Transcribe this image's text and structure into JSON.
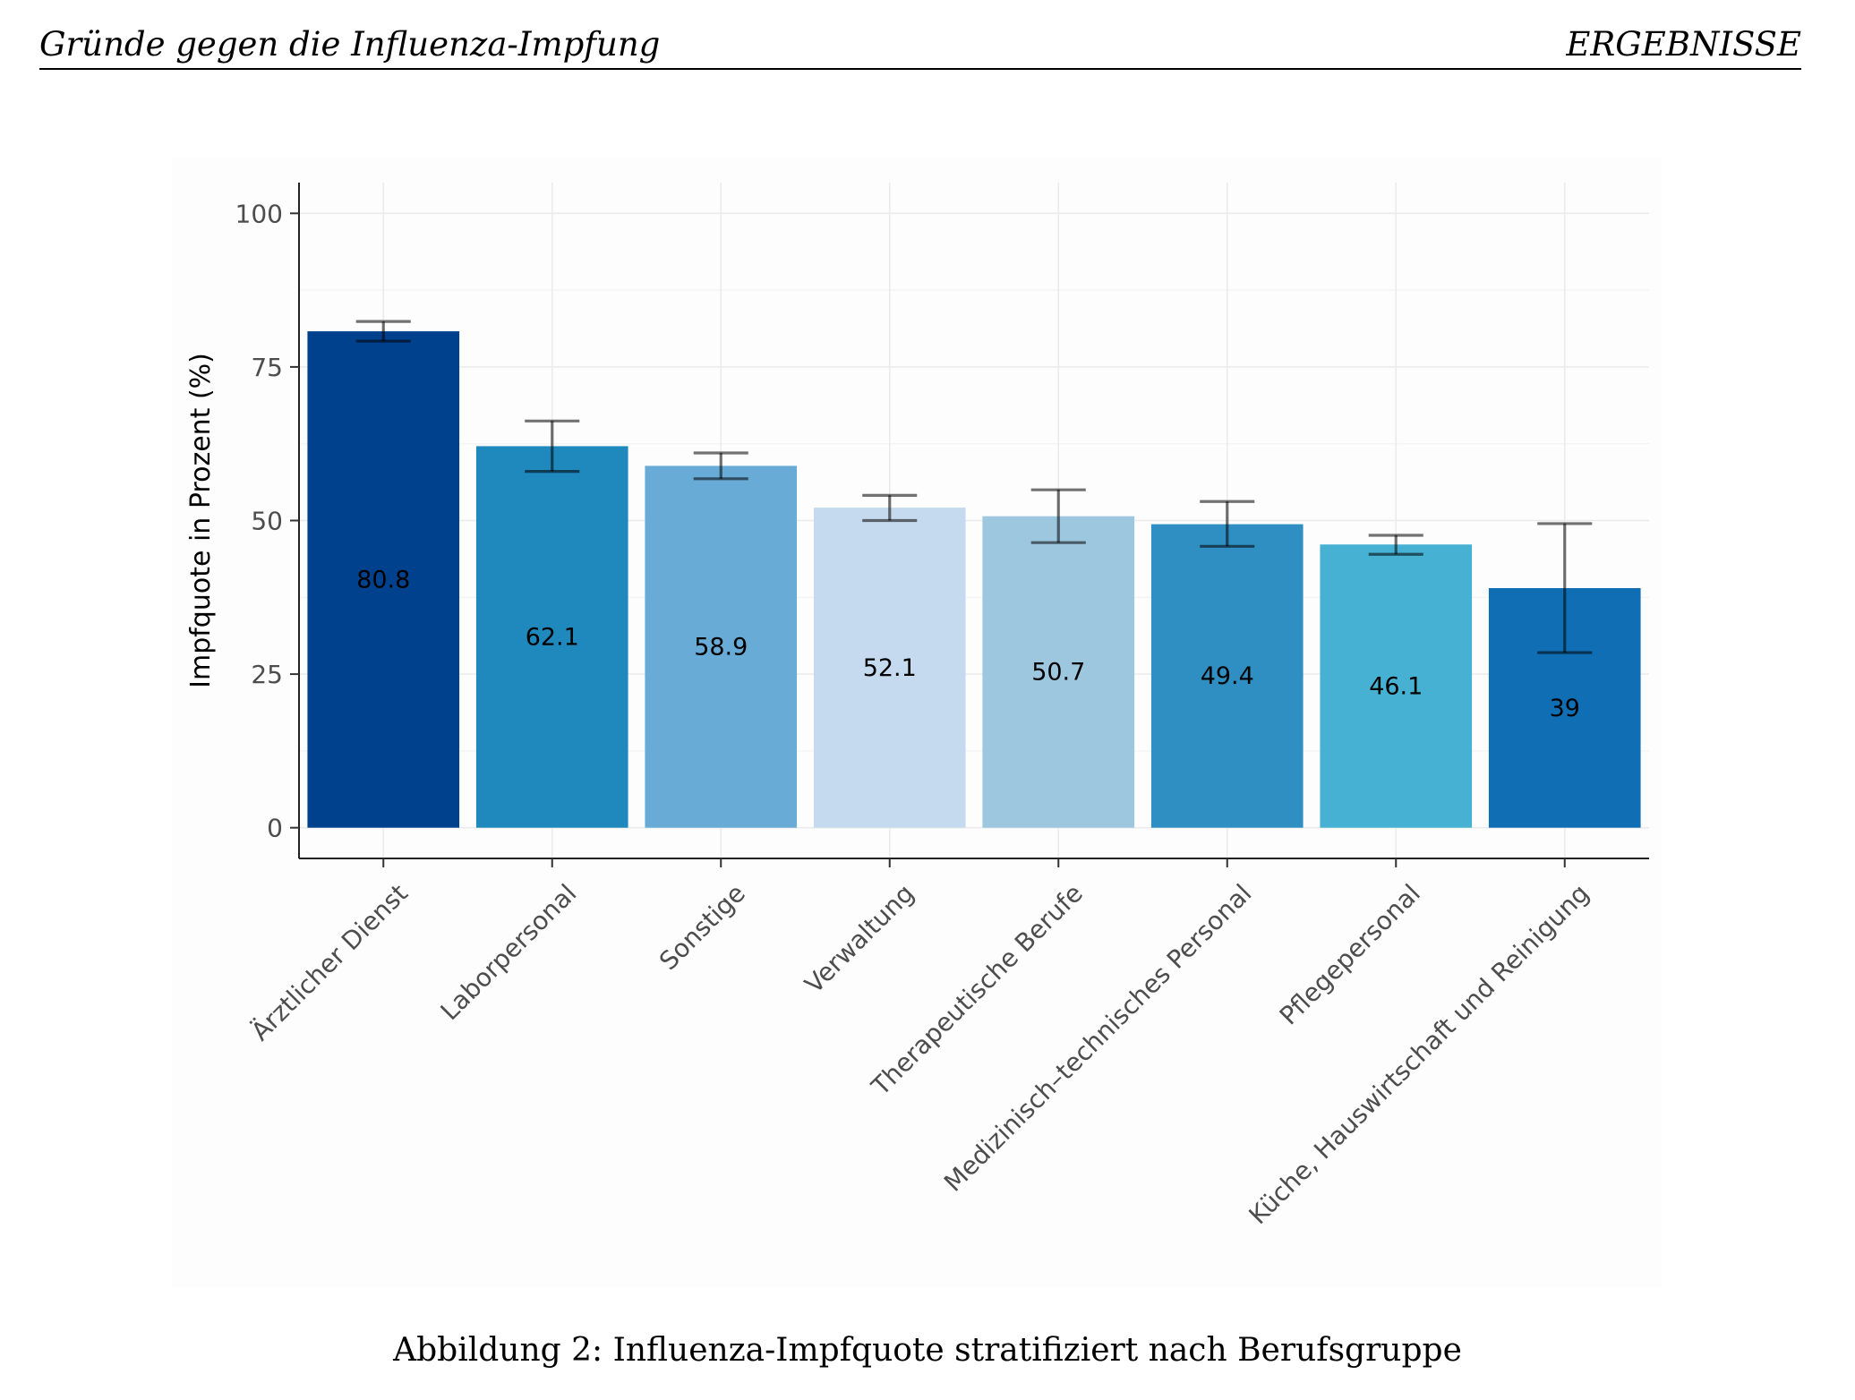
{
  "header": {
    "left": "Gründe gegen die Influenza-Impfung",
    "right": "ERGEBNISSE"
  },
  "caption": "Abbildung 2: Influenza-Impfquote stratifiziert nach Berufsgruppe",
  "chart_data": {
    "type": "bar",
    "title": "",
    "xlabel": "",
    "ylabel": "Impfquote in Prozent (%)",
    "ylim": [
      -5,
      105
    ],
    "yticks": [
      0,
      25,
      50,
      75,
      100
    ],
    "grid": true,
    "categories": [
      "Ärztlicher Dienst",
      "Laborpersonal",
      "Sonstige",
      "Verwaltung",
      "Therapeutische Berufe",
      "Medizinisch–technisches Personal",
      "Pflegepersonal",
      "Küche, Hauswirtschaft und Reinigung"
    ],
    "values": [
      80.8,
      62.1,
      58.9,
      52.1,
      50.7,
      49.4,
      46.1,
      39
    ],
    "value_labels": [
      "80.8",
      "62.1",
      "58.9",
      "52.1",
      "50.7",
      "49.4",
      "46.1",
      "39"
    ],
    "error_low": [
      79.2,
      58.0,
      56.8,
      50.0,
      46.4,
      45.8,
      44.5,
      28.5
    ],
    "error_high": [
      82.4,
      66.2,
      61.0,
      54.1,
      55.0,
      53.1,
      47.6,
      49.5
    ],
    "colors": [
      "#00418e",
      "#1f88bc",
      "#67abd6",
      "#c5daee",
      "#9dc7df",
      "#2f8fc2",
      "#46b1d2",
      "#106fb4"
    ]
  }
}
